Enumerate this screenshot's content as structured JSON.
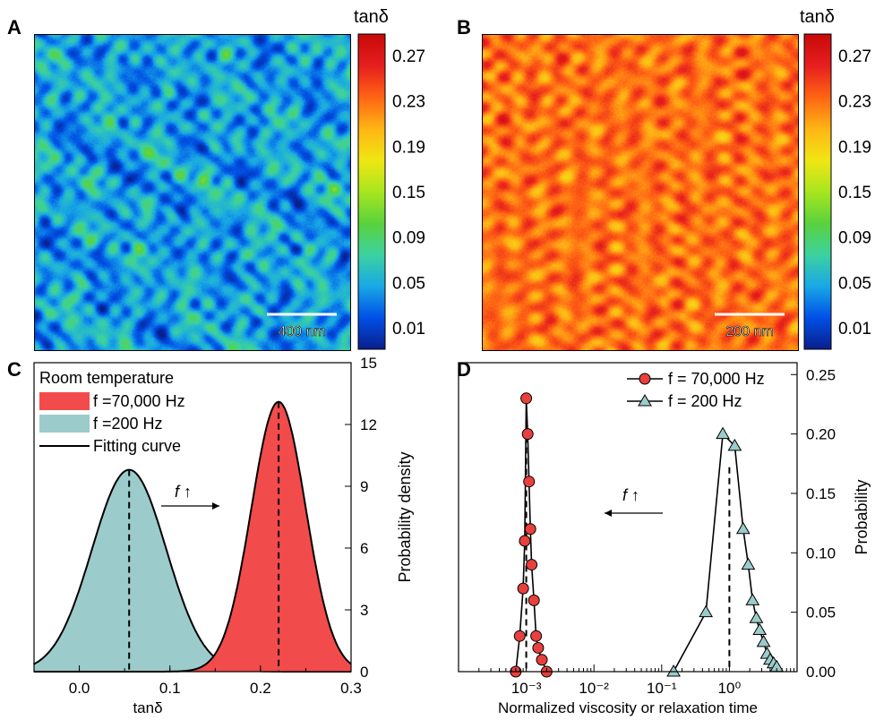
{
  "panels": {
    "A": "A",
    "B": "B",
    "C": "C",
    "D": "D"
  },
  "colormap": {
    "title": "tanδ",
    "ticks": [
      "0.27",
      "0.23",
      "0.19",
      "0.15",
      "0.09",
      "0.05",
      "0.01"
    ],
    "stops": [
      "#0a1e8c",
      "#0050e6",
      "#19a8e6",
      "#3cd2a0",
      "#5ad23c",
      "#a8e61e",
      "#f0e614",
      "#ffb414",
      "#ff6414",
      "#e61e1e",
      "#c80a0a"
    ]
  },
  "map_a": {
    "scalebar": "400 nm",
    "mean_tan_delta": 0.055
  },
  "map_b": {
    "scalebar": "200 nm",
    "mean_tan_delta": 0.22
  },
  "chart_data": [
    {
      "panel": "C",
      "type": "area",
      "xlabel": "tanδ",
      "ylabel": "Probability density",
      "xlim": [
        -0.05,
        0.3
      ],
      "ylim": [
        0,
        15
      ],
      "xticks": [
        "0.0",
        "0.1",
        "0.2",
        "0.3"
      ],
      "yticks": [
        "0",
        "3",
        "6",
        "9",
        "12",
        "15"
      ],
      "legend_title": "Room temperature",
      "legend_position": "top-left",
      "legend": [
        {
          "label": "f =70,000 Hz",
          "color": "#f24b4b"
        },
        {
          "label": "f =200 Hz",
          "color": "#9ccbcb"
        },
        {
          "label": "Fitting curve",
          "color": "#000000"
        }
      ],
      "annotation": "f ↑",
      "series": [
        {
          "name": "f =200 Hz",
          "mean": 0.055,
          "peak": 9.8,
          "sigma": 0.041,
          "color": "#9ccbcb"
        },
        {
          "name": "f =70,000 Hz",
          "mean": 0.22,
          "peak": 13.1,
          "sigma": 0.03,
          "color": "#f24b4b"
        }
      ]
    },
    {
      "panel": "D",
      "type": "line",
      "xscale": "log",
      "xlabel": "Normalized viscosity or relaxation time",
      "ylabel": "Probability",
      "xlim": [
        0.0001,
        10
      ],
      "ylim": [
        0,
        0.26
      ],
      "xticks": [
        "10⁻³",
        "10⁻²",
        "10⁻¹",
        "10⁰"
      ],
      "yticks": [
        "0.00",
        "0.05",
        "0.10",
        "0.15",
        "0.20",
        "0.25"
      ],
      "legend_position": "top-right",
      "annotation": "f ↑",
      "series": [
        {
          "name": "f = 70,000 Hz",
          "marker": "circle",
          "color": "#e8403c",
          "x": [
            0.0007,
            0.0008,
            0.0009,
            0.00095,
            0.001,
            0.00105,
            0.0011,
            0.00115,
            0.0012,
            0.0013,
            0.0014,
            0.0015,
            0.0017,
            0.002
          ],
          "y": [
            0.0,
            0.03,
            0.07,
            0.11,
            0.23,
            0.2,
            0.16,
            0.12,
            0.09,
            0.06,
            0.03,
            0.02,
            0.01,
            0.0
          ]
        },
        {
          "name": "f = 200 Hz",
          "marker": "triangle",
          "color": "#9ccbcb",
          "x": [
            0.15,
            0.45,
            0.8,
            1.2,
            1.6,
            1.9,
            2.2,
            2.5,
            2.8,
            3.2,
            3.6,
            4.0,
            4.5,
            5.0
          ],
          "y": [
            0.0,
            0.05,
            0.2,
            0.19,
            0.12,
            0.09,
            0.06,
            0.045,
            0.035,
            0.025,
            0.015,
            0.01,
            0.007,
            0.004
          ]
        }
      ],
      "dashed_lines_x": [
        0.001,
        1.0
      ]
    }
  ]
}
